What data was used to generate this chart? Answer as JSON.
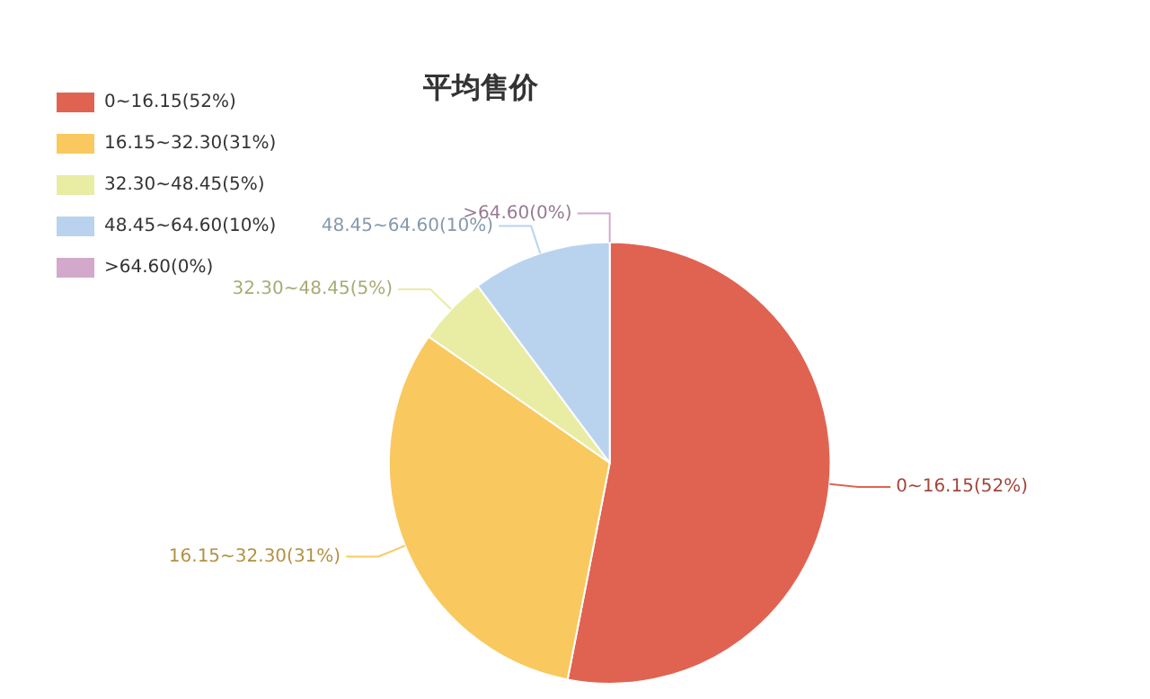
{
  "chart_data": {
    "type": "pie",
    "title": "平均售价",
    "categories": [
      "0~16.15(52%)",
      "16.15~32.30(31%)",
      "32.30~48.45(5%)",
      "48.45~64.60(10%)",
      ">64.60(0%)"
    ],
    "values": [
      52,
      31,
      5,
      10,
      0
    ],
    "colors": [
      "#e06352",
      "#f9c95f",
      "#e9eca3",
      "#b9d3ef",
      "#d2a9cb"
    ],
    "legend": "top left"
  }
}
